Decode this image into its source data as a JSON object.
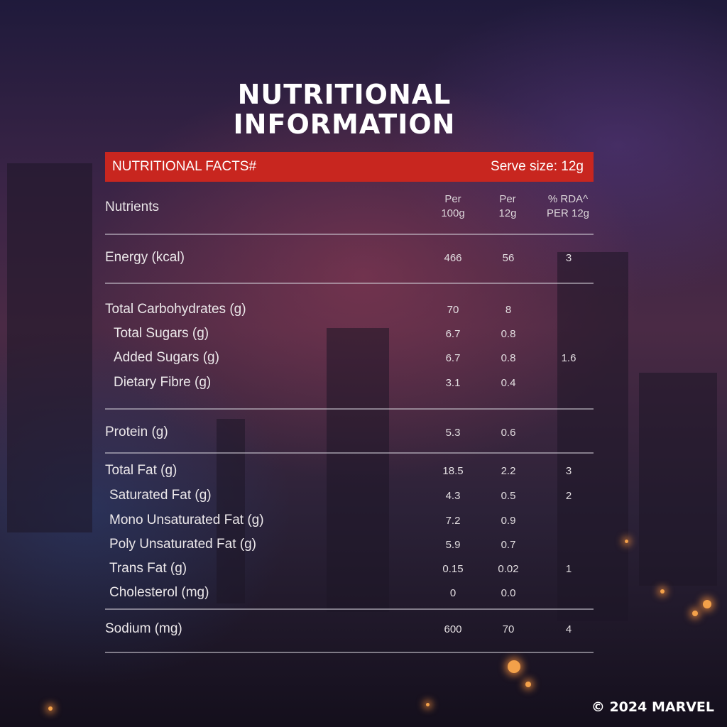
{
  "title": {
    "line1": "NUTRITIONAL",
    "line2": "INFORMATION"
  },
  "header": {
    "left": "NUTRITIONAL FACTS#",
    "right": "Serve size: 12g"
  },
  "columns": {
    "nutrients": "Nutrients",
    "per100_line1": "Per",
    "per100_line2": "100g",
    "per12_line1": "Per",
    "per12_line2": "12g",
    "rda_line1": "% RDA^",
    "rda_line2": "PER 12g"
  },
  "rows": [
    {
      "name": "Energy (kcal)",
      "per100": "466",
      "per12": "56",
      "rda": "3"
    },
    {
      "name": "Total Carbohydrates (g)",
      "per100": "70",
      "per12": "8",
      "rda": ""
    },
    {
      "name": "Total Sugars (g)",
      "per100": "6.7",
      "per12": "0.8",
      "rda": ""
    },
    {
      "name": "Added Sugars (g)",
      "per100": "6.7",
      "per12": "0.8",
      "rda": "1.6"
    },
    {
      "name": "Dietary Fibre (g)",
      "per100": "3.1",
      "per12": "0.4",
      "rda": ""
    },
    {
      "name": "Protein (g)",
      "per100": "5.3",
      "per12": "0.6",
      "rda": ""
    },
    {
      "name": "Total Fat (g)",
      "per100": "18.5",
      "per12": "2.2",
      "rda": "3"
    },
    {
      "name": "Saturated Fat (g)",
      "per100": "4.3",
      "per12": "0.5",
      "rda": "2"
    },
    {
      "name": "Mono Unsaturated Fat (g)",
      "per100": "7.2",
      "per12": "0.9",
      "rda": ""
    },
    {
      "name": "Poly Unsaturated Fat (g)",
      "per100": "5.9",
      "per12": "0.7",
      "rda": ""
    },
    {
      "name": "Trans Fat (g)",
      "per100": "0.15",
      "per12": "0.02",
      "rda": "1"
    },
    {
      "name": "Cholesterol (mg)",
      "per100": "0",
      "per12": "0.0",
      "rda": ""
    },
    {
      "name": "Sodium (mg)",
      "per100": "600",
      "per12": "70",
      "rda": "4"
    }
  ],
  "copyright": "© 2024 MARVEL",
  "colors": {
    "header_bar": "#c8261f",
    "title": "#ffffff"
  }
}
